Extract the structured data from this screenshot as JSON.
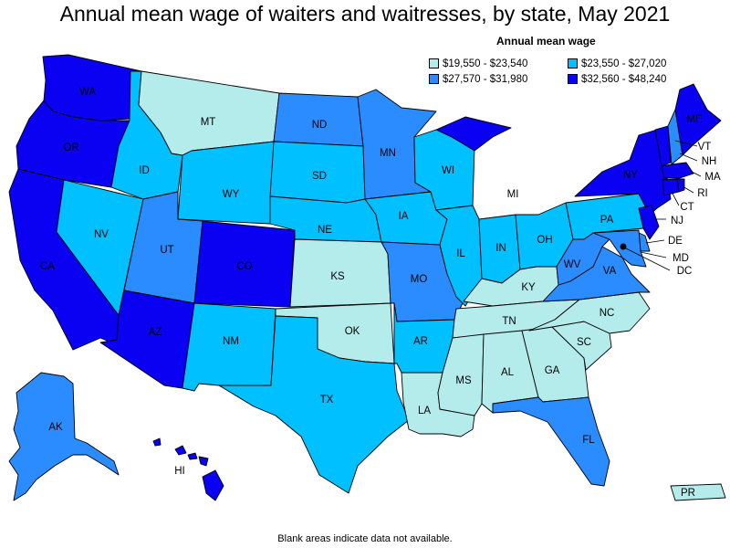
{
  "title": "Annual mean wage of waiters and waitresses, by state, May 2021",
  "legend": {
    "title": "Annual mean wage",
    "items": [
      {
        "label": "$19,550 - $23,540",
        "color": "#b4ecec"
      },
      {
        "label": "$23,550 - $27,020",
        "color": "#00c0ff"
      },
      {
        "label": "$27,570 - $31,980",
        "color": "#2a8cff"
      },
      {
        "label": "$32,560 - $48,240",
        "color": "#0a00f2"
      }
    ]
  },
  "footnote": "Blank areas indicate data not available.",
  "states": {
    "WA": {
      "label": "WA",
      "tier": 3
    },
    "OR": {
      "label": "OR",
      "tier": 3
    },
    "CA": {
      "label": "CA",
      "tier": 3
    },
    "NV": {
      "label": "NV",
      "tier": 1
    },
    "ID": {
      "label": "ID",
      "tier": 1
    },
    "MT": {
      "label": "MT",
      "tier": 0
    },
    "WY": {
      "label": "WY",
      "tier": 1
    },
    "UT": {
      "label": "UT",
      "tier": 2
    },
    "AZ": {
      "label": "AZ",
      "tier": 3
    },
    "CO": {
      "label": "CO",
      "tier": 3
    },
    "NM": {
      "label": "NM",
      "tier": 1
    },
    "ND": {
      "label": "ND",
      "tier": 2
    },
    "SD": {
      "label": "SD",
      "tier": 1
    },
    "NE": {
      "label": "NE",
      "tier": 1
    },
    "KS": {
      "label": "KS",
      "tier": 0
    },
    "OK": {
      "label": "OK",
      "tier": 0
    },
    "TX": {
      "label": "TX",
      "tier": 1
    },
    "MN": {
      "label": "MN",
      "tier": 2
    },
    "IA": {
      "label": "IA",
      "tier": 1
    },
    "MO": {
      "label": "MO",
      "tier": 2
    },
    "AR": {
      "label": "AR",
      "tier": 1
    },
    "LA": {
      "label": "LA",
      "tier": 0
    },
    "WI": {
      "label": "WI",
      "tier": 1
    },
    "IL": {
      "label": "IL",
      "tier": 1
    },
    "MI": {
      "label": "MI",
      "tier": 3
    },
    "IN": {
      "label": "IN",
      "tier": 1
    },
    "OH": {
      "label": "OH",
      "tier": 1
    },
    "KY": {
      "label": "KY",
      "tier": 0
    },
    "TN": {
      "label": "TN",
      "tier": 0
    },
    "MS": {
      "label": "MS",
      "tier": 0
    },
    "AL": {
      "label": "AL",
      "tier": 0
    },
    "GA": {
      "label": "GA",
      "tier": 0
    },
    "FL": {
      "label": "FL",
      "tier": 2
    },
    "SC": {
      "label": "SC",
      "tier": 0
    },
    "NC": {
      "label": "NC",
      "tier": 0
    },
    "VA": {
      "label": "VA",
      "tier": 2
    },
    "WV": {
      "label": "WV",
      "tier": 2
    },
    "PA": {
      "label": "PA",
      "tier": 1
    },
    "NY": {
      "label": "NY",
      "tier": 3
    },
    "NJ": {
      "label": "NJ",
      "tier": 3
    },
    "DE": {
      "label": "DE",
      "tier": 2
    },
    "MD": {
      "label": "MD",
      "tier": 2
    },
    "DC": {
      "label": "DC",
      "tier": 3
    },
    "VT": {
      "label": "VT",
      "tier": 3
    },
    "NH": {
      "label": "NH",
      "tier": 2
    },
    "ME": {
      "label": "ME",
      "tier": 3
    },
    "MA": {
      "label": "MA",
      "tier": 3
    },
    "CT": {
      "label": "CT",
      "tier": 3
    },
    "RI": {
      "label": "RI",
      "tier": 3
    },
    "AK": {
      "label": "AK",
      "tier": 2
    },
    "HI": {
      "label": "HI",
      "tier": 3
    },
    "PR": {
      "label": "PR",
      "tier": 0
    }
  }
}
